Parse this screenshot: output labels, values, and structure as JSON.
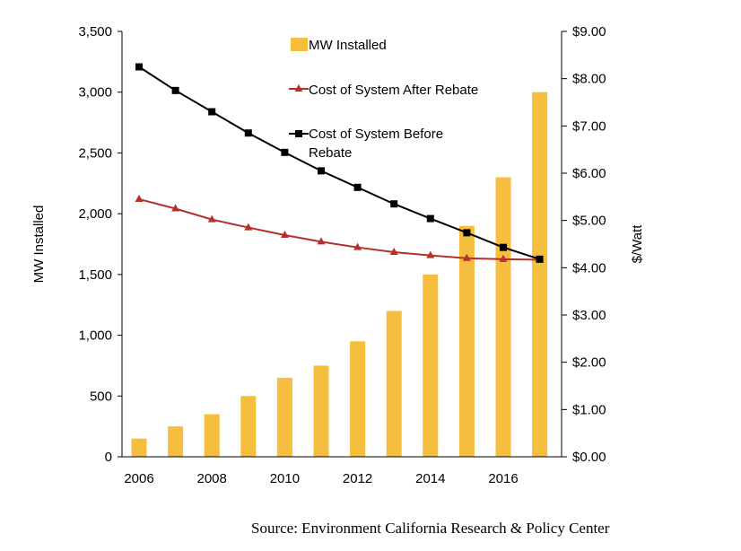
{
  "chart_data": {
    "type": "bar+line",
    "x": [
      2006,
      2007,
      2008,
      2009,
      2010,
      2011,
      2012,
      2013,
      2014,
      2015,
      2016,
      2017
    ],
    "x_tick_labels": [
      "2006",
      "2008",
      "2010",
      "2012",
      "2014",
      "2016"
    ],
    "x_tick_values": [
      2006,
      2008,
      2010,
      2012,
      2014,
      2016
    ],
    "left_axis": {
      "label": "MW Installed",
      "range": [
        0,
        3500
      ],
      "ticks": [
        0,
        500,
        1000,
        1500,
        2000,
        2500,
        3000,
        3500
      ],
      "tick_labels": [
        "0",
        "500",
        "1,000",
        "1,500",
        "2,000",
        "2,500",
        "3,000",
        "3,500"
      ]
    },
    "right_axis": {
      "label": "$/Watt",
      "range": [
        0,
        9
      ],
      "ticks": [
        0,
        1,
        2,
        3,
        4,
        5,
        6,
        7,
        8,
        9
      ],
      "tick_labels": [
        "$0.00",
        "$1.00",
        "$2.00",
        "$3.00",
        "$4.00",
        "$5.00",
        "$6.00",
        "$7.00",
        "$8.00",
        "$9.00"
      ]
    },
    "series": [
      {
        "name": "MW Installed",
        "kind": "bar",
        "axis": "left",
        "color": "#F6BE3E",
        "values": [
          150,
          250,
          350,
          500,
          650,
          750,
          950,
          1200,
          1500,
          1900,
          2300,
          3000
        ]
      },
      {
        "name": "Cost of System After Rebate",
        "kind": "line",
        "marker": "triangle",
        "axis": "right",
        "color": "#B5302A",
        "values": [
          5.45,
          5.25,
          5.02,
          4.85,
          4.69,
          4.55,
          4.43,
          4.33,
          4.26,
          4.2,
          4.18,
          4.17
        ]
      },
      {
        "name": "Cost of System Before Rebate",
        "legend_lines": [
          "Cost of System Before",
          "Rebate"
        ],
        "kind": "line",
        "marker": "square",
        "axis": "right",
        "color": "#000000",
        "values": [
          8.25,
          7.75,
          7.3,
          6.85,
          6.44,
          6.05,
          5.7,
          5.35,
          5.04,
          4.74,
          4.43,
          4.18
        ]
      }
    ]
  },
  "source": "Source: Environment California Research & Policy Center"
}
